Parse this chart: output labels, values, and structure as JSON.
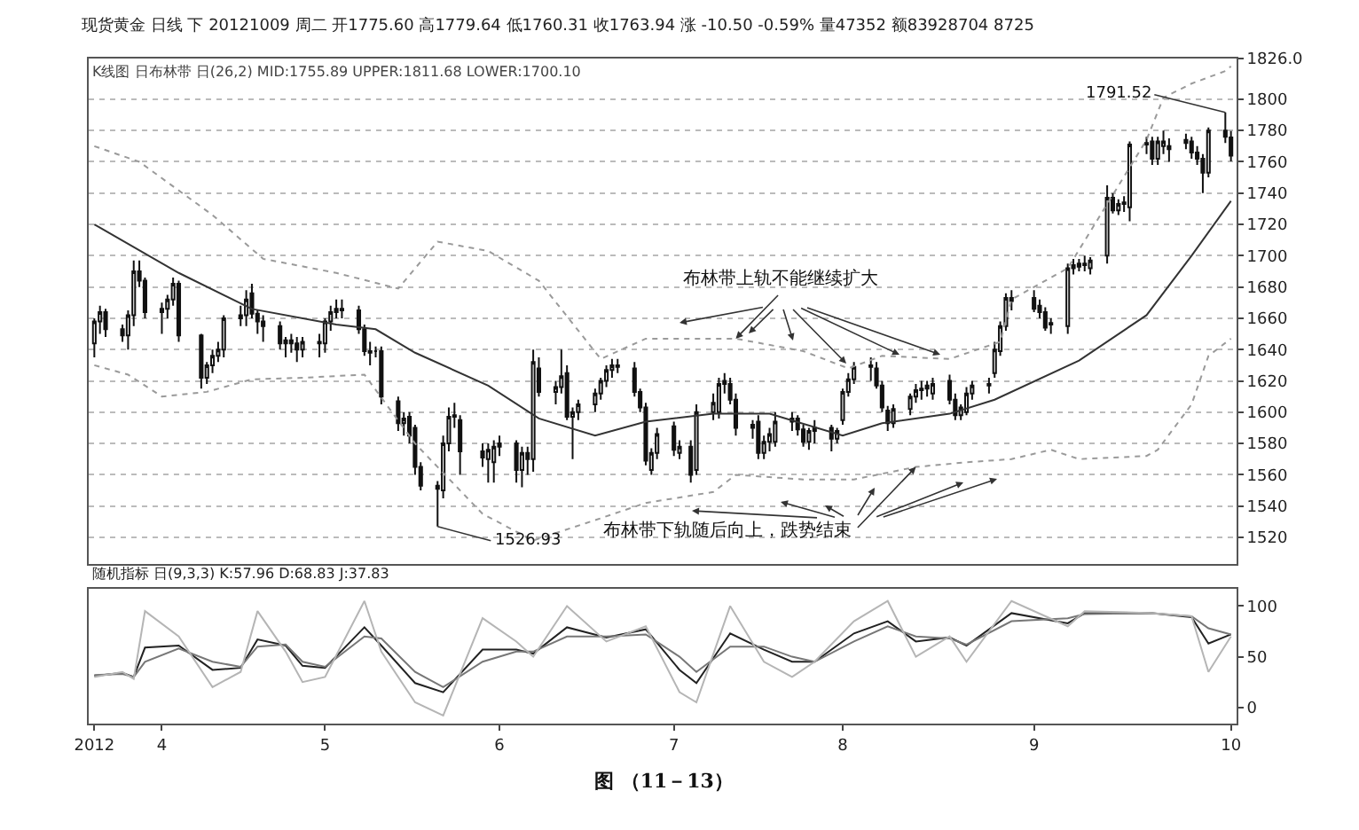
{
  "chart_data": [
    {
      "type": "candlestick",
      "title": "现货黄金 日线 下 20121009 周二 开1775.60 高1779.64 低1760.31 收1763.94 涨 -10.50 -0.59% 量47352 额83928704 8725",
      "subtitle": "K线图 日布林带 日(26,2) MID:1755.89 UPPER:1811.68 LOWER:1700.10",
      "color": "#111111",
      "x": [
        "2012-03-21",
        "2012-03-22",
        "2012-03-23",
        "2012-03-26",
        "2012-03-27",
        "2012-03-28",
        "2012-03-29",
        "2012-03-30",
        "2012-04-02",
        "2012-04-03",
        "2012-04-04",
        "2012-04-05",
        "2012-04-09",
        "2012-04-10",
        "2012-04-11",
        "2012-04-12",
        "2012-04-13",
        "2012-04-16",
        "2012-04-17",
        "2012-04-18",
        "2012-04-19",
        "2012-04-20",
        "2012-04-23",
        "2012-04-24",
        "2012-04-25",
        "2012-04-26",
        "2012-04-27",
        "2012-04-30",
        "2012-05-01",
        "2012-05-02",
        "2012-05-03",
        "2012-05-04",
        "2012-05-07",
        "2012-05-08",
        "2012-05-09",
        "2012-05-10",
        "2012-05-11",
        "2012-05-14",
        "2012-05-15",
        "2012-05-16",
        "2012-05-17",
        "2012-05-18",
        "2012-05-21",
        "2012-05-22",
        "2012-05-23",
        "2012-05-24",
        "2012-05-25",
        "2012-05-29",
        "2012-05-30",
        "2012-05-31",
        "2012-06-01",
        "2012-06-04",
        "2012-06-05",
        "2012-06-06",
        "2012-06-07",
        "2012-06-08",
        "2012-06-11",
        "2012-06-12",
        "2012-06-13",
        "2012-06-14",
        "2012-06-15",
        "2012-06-18",
        "2012-06-19",
        "2012-06-20",
        "2012-06-21",
        "2012-06-22",
        "2012-06-25",
        "2012-06-26",
        "2012-06-27",
        "2012-06-28",
        "2012-06-29",
        "2012-07-02",
        "2012-07-03",
        "2012-07-05",
        "2012-07-06",
        "2012-07-09",
        "2012-07-10",
        "2012-07-11",
        "2012-07-12",
        "2012-07-13",
        "2012-07-16",
        "2012-07-17",
        "2012-07-18",
        "2012-07-19",
        "2012-07-20",
        "2012-07-23",
        "2012-07-24",
        "2012-07-25",
        "2012-07-26",
        "2012-07-27",
        "2012-07-30",
        "2012-07-31",
        "2012-08-01",
        "2012-08-02",
        "2012-08-03",
        "2012-08-06",
        "2012-08-07",
        "2012-08-08",
        "2012-08-09",
        "2012-08-10",
        "2012-08-13",
        "2012-08-14",
        "2012-08-15",
        "2012-08-16",
        "2012-08-17",
        "2012-08-20",
        "2012-08-21",
        "2012-08-22",
        "2012-08-23",
        "2012-08-24",
        "2012-08-27",
        "2012-08-28",
        "2012-08-29",
        "2012-08-30",
        "2012-08-31",
        "2012-09-04",
        "2012-09-05",
        "2012-09-06",
        "2012-09-07",
        "2012-09-10",
        "2012-09-11",
        "2012-09-12",
        "2012-09-13",
        "2012-09-14",
        "2012-09-17",
        "2012-09-18",
        "2012-09-19",
        "2012-09-20",
        "2012-09-21",
        "2012-09-24",
        "2012-09-25",
        "2012-09-26",
        "2012-09-27",
        "2012-09-28",
        "2012-10-01",
        "2012-10-02",
        "2012-10-03",
        "2012-10-04",
        "2012-10-05",
        "2012-10-08",
        "2012-10-09"
      ],
      "ohlc": [
        [
          1644,
          1660,
          1635,
          1658
        ],
        [
          1658,
          1668,
          1650,
          1664
        ],
        [
          1664,
          1666,
          1648,
          1653
        ],
        [
          1653,
          1656,
          1645,
          1649
        ],
        [
          1649,
          1665,
          1640,
          1662
        ],
        [
          1662,
          1697,
          1655,
          1690
        ],
        [
          1690,
          1697,
          1680,
          1684
        ],
        [
          1684,
          1686,
          1660,
          1664
        ],
        [
          1664,
          1670,
          1650,
          1666
        ],
        [
          1666,
          1675,
          1660,
          1672
        ],
        [
          1672,
          1686,
          1668,
          1682
        ],
        [
          1682,
          1684,
          1645,
          1649
        ],
        [
          1649,
          1650,
          1615,
          1622
        ],
        [
          1622,
          1632,
          1618,
          1630
        ],
        [
          1630,
          1640,
          1625,
          1636
        ],
        [
          1636,
          1645,
          1632,
          1640
        ],
        [
          1640,
          1662,
          1635,
          1660
        ],
        [
          1660,
          1668,
          1655,
          1662
        ],
        [
          1662,
          1678,
          1655,
          1672
        ],
        [
          1676,
          1682,
          1660,
          1663
        ],
        [
          1663,
          1665,
          1650,
          1658
        ],
        [
          1658,
          1662,
          1645,
          1655
        ],
        [
          1655,
          1658,
          1640,
          1644
        ],
        [
          1644,
          1648,
          1635,
          1646
        ],
        [
          1646,
          1650,
          1638,
          1644
        ],
        [
          1644,
          1648,
          1632,
          1640
        ],
        [
          1640,
          1648,
          1635,
          1645
        ],
        [
          1645,
          1650,
          1635,
          1644
        ],
        [
          1644,
          1660,
          1638,
          1658
        ],
        [
          1658,
          1668,
          1652,
          1664
        ],
        [
          1664,
          1672,
          1660,
          1666
        ],
        [
          1666,
          1672,
          1660,
          1665
        ],
        [
          1665,
          1668,
          1650,
          1653
        ],
        [
          1653,
          1656,
          1636,
          1639
        ],
        [
          1639,
          1645,
          1630,
          1638
        ],
        [
          1639,
          1642,
          1635,
          1639
        ],
        [
          1639,
          1642,
          1605,
          1610
        ],
        [
          1607,
          1610,
          1588,
          1593
        ],
        [
          1593,
          1600,
          1585,
          1596
        ],
        [
          1597,
          1600,
          1580,
          1585
        ],
        [
          1590,
          1592,
          1560,
          1565
        ],
        [
          1565,
          1568,
          1550,
          1553
        ],
        [
          1553,
          1556,
          1526.93,
          1551
        ],
        [
          1550,
          1585,
          1545,
          1580
        ],
        [
          1580,
          1603,
          1575,
          1597
        ],
        [
          1597,
          1606,
          1590,
          1598
        ],
        [
          1595,
          1598,
          1560,
          1575
        ],
        [
          1575,
          1580,
          1565,
          1571
        ],
        [
          1570,
          1580,
          1555,
          1576
        ],
        [
          1568,
          1582,
          1555,
          1578
        ],
        [
          1578,
          1585,
          1572,
          1580
        ],
        [
          1580,
          1582,
          1555,
          1563
        ],
        [
          1563,
          1578,
          1552,
          1574
        ],
        [
          1574,
          1578,
          1560,
          1570
        ],
        [
          1570,
          1640,
          1562,
          1632
        ],
        [
          1628,
          1635,
          1610,
          1613
        ],
        [
          1613,
          1620,
          1605,
          1616
        ],
        [
          1616,
          1640,
          1612,
          1623
        ],
        [
          1625,
          1630,
          1595,
          1597
        ],
        [
          1597,
          1603,
          1570,
          1600
        ],
        [
          1600,
          1608,
          1595,
          1605
        ],
        [
          1605,
          1615,
          1600,
          1612
        ],
        [
          1612,
          1622,
          1608,
          1620
        ],
        [
          1620,
          1630,
          1616,
          1627
        ],
        [
          1627,
          1634,
          1622,
          1630
        ],
        [
          1630,
          1634,
          1625,
          1629
        ],
        [
          1628,
          1632,
          1610,
          1613
        ],
        [
          1613,
          1615,
          1600,
          1603
        ],
        [
          1603,
          1606,
          1566,
          1569
        ],
        [
          1563,
          1577,
          1560,
          1574
        ],
        [
          1574,
          1590,
          1570,
          1586
        ],
        [
          1591,
          1594,
          1572,
          1576
        ],
        [
          1574,
          1582,
          1570,
          1578
        ],
        [
          1578,
          1582,
          1555,
          1560
        ],
        [
          1563,
          1605,
          1560,
          1600
        ],
        [
          1600,
          1612,
          1595,
          1606
        ],
        [
          1600,
          1622,
          1596,
          1618
        ],
        [
          1618,
          1625,
          1612,
          1620
        ],
        [
          1618,
          1622,
          1605,
          1608
        ],
        [
          1608,
          1612,
          1585,
          1590
        ],
        [
          1590,
          1595,
          1583,
          1592
        ],
        [
          1594,
          1598,
          1570,
          1574
        ],
        [
          1574,
          1585,
          1570,
          1581
        ],
        [
          1581,
          1590,
          1575,
          1586
        ],
        [
          1581,
          1600,
          1578,
          1594
        ],
        [
          1594,
          1600,
          1588,
          1596
        ],
        [
          1596,
          1598,
          1585,
          1589
        ],
        [
          1589,
          1592,
          1578,
          1581
        ],
        [
          1581,
          1590,
          1576,
          1588
        ],
        [
          1588,
          1595,
          1580,
          1590
        ],
        [
          1590,
          1592,
          1575,
          1583
        ],
        [
          1583,
          1590,
          1580,
          1588
        ],
        [
          1595,
          1615,
          1592,
          1613
        ],
        [
          1613,
          1625,
          1610,
          1621
        ],
        [
          1621,
          1632,
          1618,
          1629
        ],
        [
          1629,
          1635,
          1620,
          1630
        ],
        [
          1628,
          1632,
          1615,
          1617
        ],
        [
          1617,
          1620,
          1600,
          1603
        ],
        [
          1601,
          1604,
          1588,
          1593
        ],
        [
          1593,
          1605,
          1590,
          1602
        ],
        [
          1602,
          1612,
          1598,
          1610
        ],
        [
          1610,
          1618,
          1606,
          1614
        ],
        [
          1614,
          1620,
          1608,
          1615
        ],
        [
          1615,
          1620,
          1610,
          1617
        ],
        [
          1612,
          1622,
          1608,
          1618
        ],
        [
          1620,
          1624,
          1605,
          1608
        ],
        [
          1608,
          1612,
          1595,
          1598
        ],
        [
          1598,
          1605,
          1595,
          1603
        ],
        [
          1600,
          1616,
          1598,
          1612
        ],
        [
          1612,
          1620,
          1608,
          1617
        ],
        [
          1617,
          1622,
          1612,
          1618
        ],
        [
          1625,
          1645,
          1622,
          1640
        ],
        [
          1639,
          1658,
          1636,
          1655
        ],
        [
          1655,
          1676,
          1652,
          1673
        ],
        [
          1671,
          1678,
          1665,
          1673
        ],
        [
          1673,
          1678,
          1664,
          1666
        ],
        [
          1668,
          1672,
          1660,
          1664
        ],
        [
          1664,
          1667,
          1652,
          1654
        ],
        [
          1656,
          1660,
          1650,
          1657
        ],
        [
          1655,
          1695,
          1650,
          1692
        ],
        [
          1692,
          1698,
          1688,
          1694
        ],
        [
          1693,
          1698,
          1690,
          1695
        ],
        [
          1695,
          1700,
          1690,
          1694
        ],
        [
          1692,
          1699,
          1688,
          1697
        ],
        [
          1700,
          1745,
          1695,
          1737
        ],
        [
          1737,
          1740,
          1727,
          1729
        ],
        [
          1729,
          1736,
          1726,
          1733
        ],
        [
          1733,
          1738,
          1728,
          1734
        ],
        [
          1731,
          1773,
          1722,
          1771
        ],
        [
          1771,
          1776,
          1765,
          1772
        ],
        [
          1773,
          1776,
          1758,
          1762
        ],
        [
          1762,
          1776,
          1758,
          1773
        ],
        [
          1770,
          1780,
          1765,
          1773
        ],
        [
          1770,
          1775,
          1760,
          1768
        ],
        [
          1772,
          1778,
          1768,
          1774
        ],
        [
          1773,
          1776,
          1762,
          1766
        ],
        [
          1766,
          1770,
          1758,
          1762
        ],
        [
          1762,
          1765,
          1740,
          1753
        ],
        [
          1753,
          1782,
          1750,
          1780
        ],
        [
          1780,
          1791.52,
          1772,
          1776
        ],
        [
          1775.6,
          1779.64,
          1760.31,
          1763.94
        ]
      ],
      "series": [
        {
          "type": "line",
          "color": "#9a9a9a",
          "line_style": "dotted",
          "x": [
            "2012-03-21",
            "2012-03-29",
            "2012-04-11",
            "2012-04-20",
            "2012-05-03",
            "2012-05-14",
            "2012-05-21",
            "2012-05-30",
            "2012-06-08",
            "2012-06-19",
            "2012-06-27",
            "2012-07-13",
            "2012-07-25",
            "2012-08-02",
            "2012-08-08",
            "2012-08-20",
            "2012-08-29",
            "2012-08-31",
            "2012-09-10",
            "2012-09-24",
            "2012-09-27",
            "2012-10-02",
            "2012-10-08",
            "2012-10-09"
          ],
          "values": [
            1770,
            1760,
            1726,
            1698,
            1689,
            1679,
            1709,
            1703,
            1684,
            1634,
            1647,
            1647,
            1639,
            1628,
            1636,
            1634,
            1645,
            1672,
            1692,
            1774,
            1801,
            1810,
            1818,
            1821
          ]
        },
        {
          "type": "line",
          "color": "#333333",
          "line_style": "solid",
          "x": [
            "2012-03-21",
            "2012-04-05",
            "2012-04-18",
            "2012-05-03",
            "2012-05-10",
            "2012-05-17",
            "2012-05-30",
            "2012-06-08",
            "2012-06-18",
            "2012-06-27",
            "2012-07-09",
            "2012-07-19",
            "2012-08-01",
            "2012-08-08",
            "2012-08-20",
            "2012-08-28",
            "2012-09-12",
            "2012-09-24",
            "2012-10-02",
            "2012-10-09"
          ],
          "values": [
            1720,
            1689,
            1666,
            1656,
            1653,
            1638,
            1617,
            1596,
            1585,
            1594,
            1599,
            1599,
            1585,
            1593,
            1599,
            1608,
            1633,
            1662,
            1700,
            1735
          ]
        },
        {
          "type": "line",
          "color": "#9a9a9a",
          "line_style": "dotted",
          "x": [
            "2012-03-21",
            "2012-03-27",
            "2012-04-02",
            "2012-04-10",
            "2012-04-18",
            "2012-04-27",
            "2012-05-08",
            "2012-05-17",
            "2012-05-29",
            "2012-06-07",
            "2012-06-18",
            "2012-06-27",
            "2012-07-09",
            "2012-07-13",
            "2012-07-25",
            "2012-08-03",
            "2012-08-14",
            "2012-08-23",
            "2012-08-31",
            "2012-09-07",
            "2012-09-12",
            "2012-09-24",
            "2012-09-26",
            "2012-10-02",
            "2012-10-05",
            "2012-10-09"
          ],
          "values": [
            1630,
            1624,
            1610,
            1613,
            1621,
            1622,
            1624,
            1580,
            1535,
            1518,
            1531,
            1542,
            1549,
            1560,
            1557,
            1557,
            1565,
            1568,
            1570,
            1576,
            1570,
            1572,
            1576,
            1605,
            1636,
            1647
          ]
        }
      ],
      "xlim": [
        "2012-03-20",
        "2012-10-10"
      ],
      "ylim": [
        1503,
        1826
      ],
      "yticks": [
        1520,
        1540,
        1560,
        1580,
        1600,
        1620,
        1640,
        1660,
        1680,
        1700,
        1720,
        1740,
        1760,
        1780,
        1800,
        {
          "value": 1826,
          "label": "1826.0"
        }
      ],
      "grid": "y",
      "tick_labels": "y",
      "annotations": [
        {
          "text": "1526.93",
          "x": "2012-05-21",
          "y": 1526.93
        },
        {
          "text": "1791.52",
          "x": "2012-10-08",
          "y": 1791.52
        },
        {
          "text": "布林带上轨不能继续扩大",
          "x": "2012-07-13",
          "y": 1647
        },
        {
          "text": "布林带下轨随后向上，跌势结束",
          "x": "2012-08-14",
          "y": 1565
        }
      ]
    },
    {
      "type": "line",
      "title": "随机指标 日(9,3,3) K:57.96 D:68.83 J:37.83",
      "line_style": "solid",
      "marker": "none",
      "x": [
        "2012-03-21",
        "2012-03-26",
        "2012-03-28",
        "2012-03-30",
        "2012-04-05",
        "2012-04-11",
        "2012-04-16",
        "2012-04-19",
        "2012-04-24",
        "2012-04-27",
        "2012-05-01",
        "2012-05-08",
        "2012-05-11",
        "2012-05-17",
        "2012-05-22",
        "2012-05-29",
        "2012-06-04",
        "2012-06-07",
        "2012-06-13",
        "2012-06-20",
        "2012-06-27",
        "2012-07-03",
        "2012-07-06",
        "2012-07-12",
        "2012-07-18",
        "2012-07-23",
        "2012-07-27",
        "2012-08-03",
        "2012-08-09",
        "2012-08-14",
        "2012-08-20",
        "2012-08-23",
        "2012-08-31",
        "2012-09-10",
        "2012-09-13",
        "2012-09-25",
        "2012-10-02",
        "2012-10-05",
        "2012-10-09"
      ],
      "series": [
        {
          "color": "#222222",
          "values": [
            31,
            34,
            30,
            59,
            61,
            37,
            39,
            67,
            61,
            41,
            39,
            79,
            61,
            24,
            15,
            57,
            57,
            53,
            79,
            69,
            77,
            37,
            24,
            73,
            57,
            45,
            45,
            73,
            85,
            65,
            69,
            61,
            93,
            83,
            93,
            93,
            89,
            63,
            72
          ]
        },
        {
          "color": "#777777",
          "values": [
            32,
            33,
            30,
            45,
            58,
            45,
            40,
            60,
            62,
            45,
            40,
            70,
            68,
            35,
            20,
            45,
            55,
            55,
            70,
            70,
            72,
            50,
            35,
            60,
            60,
            50,
            45,
            65,
            80,
            70,
            68,
            62,
            85,
            88,
            92,
            93,
            90,
            78,
            72
          ]
        },
        {
          "color": "#b5b5b5",
          "values": [
            30,
            35,
            28,
            95,
            70,
            20,
            35,
            95,
            55,
            25,
            30,
            105,
            55,
            5,
            -8,
            88,
            65,
            50,
            100,
            65,
            80,
            15,
            5,
            100,
            45,
            30,
            45,
            85,
            105,
            50,
            70,
            45,
            105,
            80,
            95,
            93,
            90,
            35,
            70
          ]
        }
      ],
      "xlim": [
        "2012-03-20",
        "2012-10-10"
      ],
      "xticks": [
        {
          "value": "2012-03-21",
          "label": "2012"
        },
        {
          "value": "2012-04-02",
          "label": "4"
        },
        {
          "value": "2012-05-01",
          "label": "5"
        },
        {
          "value": "2012-06-01",
          "label": "6"
        },
        {
          "value": "2012-07-02",
          "label": "7"
        },
        {
          "value": "2012-08-01",
          "label": "8"
        },
        {
          "value": "2012-09-04",
          "label": "9"
        },
        {
          "value": "2012-10-09",
          "label": "10"
        }
      ],
      "ylim": [
        -16,
        117
      ],
      "yticks": [
        0,
        50,
        100
      ],
      "annotations": [
        "图 （11－13）"
      ]
    }
  ]
}
